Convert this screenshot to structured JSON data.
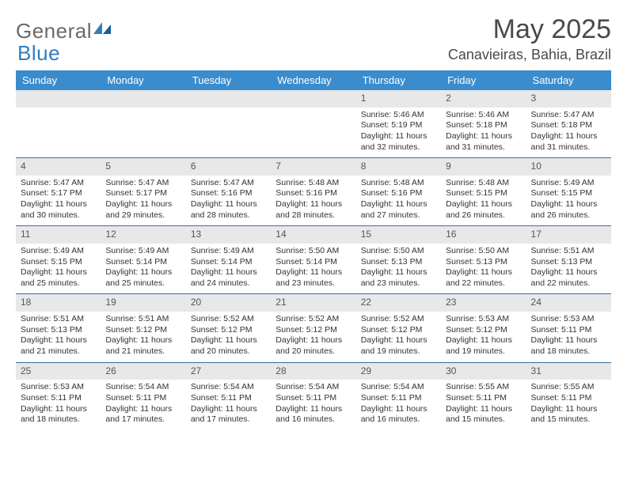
{
  "logo": {
    "text1": "General",
    "text2": "Blue"
  },
  "title": "May 2025",
  "location": "Canavieiras, Bahia, Brazil",
  "daynames": [
    "Sunday",
    "Monday",
    "Tuesday",
    "Wednesday",
    "Thursday",
    "Friday",
    "Saturday"
  ],
  "colors": {
    "header_bg": "#3b8ccc",
    "rule": "#3b6ea0",
    "daynum_bg": "#e8e8e8",
    "logo_gray": "#6a6a6a",
    "logo_blue": "#2f7ec0"
  },
  "weeks": [
    [
      null,
      null,
      null,
      null,
      {
        "n": "1",
        "sr": "Sunrise: 5:46 AM",
        "ss": "Sunset: 5:19 PM",
        "d1": "Daylight: 11 hours",
        "d2": "and 32 minutes."
      },
      {
        "n": "2",
        "sr": "Sunrise: 5:46 AM",
        "ss": "Sunset: 5:18 PM",
        "d1": "Daylight: 11 hours",
        "d2": "and 31 minutes."
      },
      {
        "n": "3",
        "sr": "Sunrise: 5:47 AM",
        "ss": "Sunset: 5:18 PM",
        "d1": "Daylight: 11 hours",
        "d2": "and 31 minutes."
      }
    ],
    [
      {
        "n": "4",
        "sr": "Sunrise: 5:47 AM",
        "ss": "Sunset: 5:17 PM",
        "d1": "Daylight: 11 hours",
        "d2": "and 30 minutes."
      },
      {
        "n": "5",
        "sr": "Sunrise: 5:47 AM",
        "ss": "Sunset: 5:17 PM",
        "d1": "Daylight: 11 hours",
        "d2": "and 29 minutes."
      },
      {
        "n": "6",
        "sr": "Sunrise: 5:47 AM",
        "ss": "Sunset: 5:16 PM",
        "d1": "Daylight: 11 hours",
        "d2": "and 28 minutes."
      },
      {
        "n": "7",
        "sr": "Sunrise: 5:48 AM",
        "ss": "Sunset: 5:16 PM",
        "d1": "Daylight: 11 hours",
        "d2": "and 28 minutes."
      },
      {
        "n": "8",
        "sr": "Sunrise: 5:48 AM",
        "ss": "Sunset: 5:16 PM",
        "d1": "Daylight: 11 hours",
        "d2": "and 27 minutes."
      },
      {
        "n": "9",
        "sr": "Sunrise: 5:48 AM",
        "ss": "Sunset: 5:15 PM",
        "d1": "Daylight: 11 hours",
        "d2": "and 26 minutes."
      },
      {
        "n": "10",
        "sr": "Sunrise: 5:49 AM",
        "ss": "Sunset: 5:15 PM",
        "d1": "Daylight: 11 hours",
        "d2": "and 26 minutes."
      }
    ],
    [
      {
        "n": "11",
        "sr": "Sunrise: 5:49 AM",
        "ss": "Sunset: 5:15 PM",
        "d1": "Daylight: 11 hours",
        "d2": "and 25 minutes."
      },
      {
        "n": "12",
        "sr": "Sunrise: 5:49 AM",
        "ss": "Sunset: 5:14 PM",
        "d1": "Daylight: 11 hours",
        "d2": "and 25 minutes."
      },
      {
        "n": "13",
        "sr": "Sunrise: 5:49 AM",
        "ss": "Sunset: 5:14 PM",
        "d1": "Daylight: 11 hours",
        "d2": "and 24 minutes."
      },
      {
        "n": "14",
        "sr": "Sunrise: 5:50 AM",
        "ss": "Sunset: 5:14 PM",
        "d1": "Daylight: 11 hours",
        "d2": "and 23 minutes."
      },
      {
        "n": "15",
        "sr": "Sunrise: 5:50 AM",
        "ss": "Sunset: 5:13 PM",
        "d1": "Daylight: 11 hours",
        "d2": "and 23 minutes."
      },
      {
        "n": "16",
        "sr": "Sunrise: 5:50 AM",
        "ss": "Sunset: 5:13 PM",
        "d1": "Daylight: 11 hours",
        "d2": "and 22 minutes."
      },
      {
        "n": "17",
        "sr": "Sunrise: 5:51 AM",
        "ss": "Sunset: 5:13 PM",
        "d1": "Daylight: 11 hours",
        "d2": "and 22 minutes."
      }
    ],
    [
      {
        "n": "18",
        "sr": "Sunrise: 5:51 AM",
        "ss": "Sunset: 5:13 PM",
        "d1": "Daylight: 11 hours",
        "d2": "and 21 minutes."
      },
      {
        "n": "19",
        "sr": "Sunrise: 5:51 AM",
        "ss": "Sunset: 5:12 PM",
        "d1": "Daylight: 11 hours",
        "d2": "and 21 minutes."
      },
      {
        "n": "20",
        "sr": "Sunrise: 5:52 AM",
        "ss": "Sunset: 5:12 PM",
        "d1": "Daylight: 11 hours",
        "d2": "and 20 minutes."
      },
      {
        "n": "21",
        "sr": "Sunrise: 5:52 AM",
        "ss": "Sunset: 5:12 PM",
        "d1": "Daylight: 11 hours",
        "d2": "and 20 minutes."
      },
      {
        "n": "22",
        "sr": "Sunrise: 5:52 AM",
        "ss": "Sunset: 5:12 PM",
        "d1": "Daylight: 11 hours",
        "d2": "and 19 minutes."
      },
      {
        "n": "23",
        "sr": "Sunrise: 5:53 AM",
        "ss": "Sunset: 5:12 PM",
        "d1": "Daylight: 11 hours",
        "d2": "and 19 minutes."
      },
      {
        "n": "24",
        "sr": "Sunrise: 5:53 AM",
        "ss": "Sunset: 5:11 PM",
        "d1": "Daylight: 11 hours",
        "d2": "and 18 minutes."
      }
    ],
    [
      {
        "n": "25",
        "sr": "Sunrise: 5:53 AM",
        "ss": "Sunset: 5:11 PM",
        "d1": "Daylight: 11 hours",
        "d2": "and 18 minutes."
      },
      {
        "n": "26",
        "sr": "Sunrise: 5:54 AM",
        "ss": "Sunset: 5:11 PM",
        "d1": "Daylight: 11 hours",
        "d2": "and 17 minutes."
      },
      {
        "n": "27",
        "sr": "Sunrise: 5:54 AM",
        "ss": "Sunset: 5:11 PM",
        "d1": "Daylight: 11 hours",
        "d2": "and 17 minutes."
      },
      {
        "n": "28",
        "sr": "Sunrise: 5:54 AM",
        "ss": "Sunset: 5:11 PM",
        "d1": "Daylight: 11 hours",
        "d2": "and 16 minutes."
      },
      {
        "n": "29",
        "sr": "Sunrise: 5:54 AM",
        "ss": "Sunset: 5:11 PM",
        "d1": "Daylight: 11 hours",
        "d2": "and 16 minutes."
      },
      {
        "n": "30",
        "sr": "Sunrise: 5:55 AM",
        "ss": "Sunset: 5:11 PM",
        "d1": "Daylight: 11 hours",
        "d2": "and 15 minutes."
      },
      {
        "n": "31",
        "sr": "Sunrise: 5:55 AM",
        "ss": "Sunset: 5:11 PM",
        "d1": "Daylight: 11 hours",
        "d2": "and 15 minutes."
      }
    ]
  ]
}
